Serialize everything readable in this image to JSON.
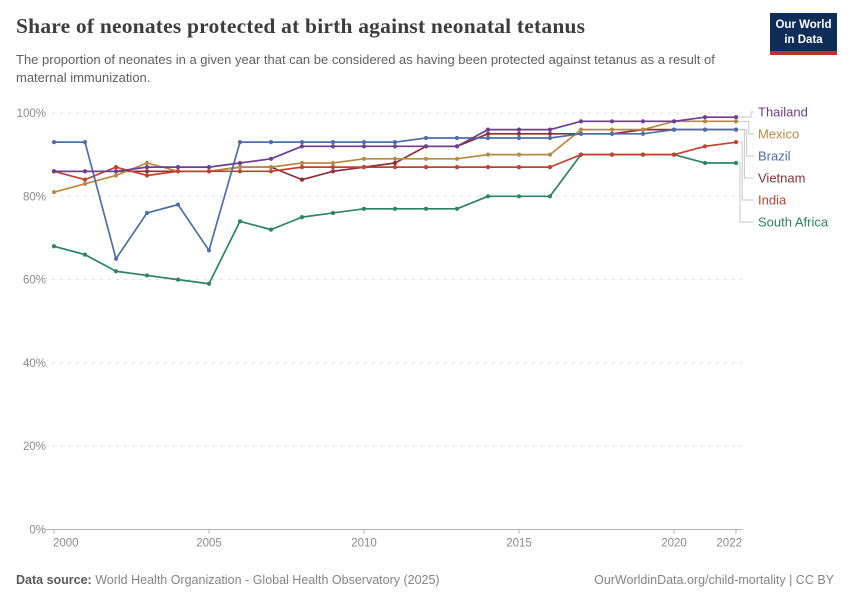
{
  "header": {
    "title": "Share of neonates protected at birth against neonatal tetanus",
    "subtitle": "The proportion of neonates in a given year that can be considered as having been protected against tetanus as a result of maternal immunization.",
    "logo": {
      "line1": "Our World",
      "line2": "in Data",
      "bg_color": "#0e2e57",
      "stripe_color": "#bf3036"
    }
  },
  "chart_data": {
    "type": "line",
    "title": "Share of neonates protected at birth against neonatal tetanus",
    "x": [
      2000,
      2001,
      2002,
      2003,
      2004,
      2005,
      2006,
      2007,
      2008,
      2009,
      2010,
      2011,
      2012,
      2013,
      2014,
      2015,
      2016,
      2017,
      2018,
      2019,
      2020,
      2021,
      2022
    ],
    "series": [
      {
        "name": "Thailand",
        "color": "#6d3e91",
        "values": [
          86,
          86,
          86,
          87,
          87,
          87,
          88,
          89,
          92,
          92,
          92,
          92,
          92,
          92,
          96,
          96,
          96,
          98,
          98,
          98,
          98,
          99,
          99
        ]
      },
      {
        "name": "Mexico",
        "color": "#b78a43",
        "values": [
          81,
          83,
          85,
          88,
          86,
          86,
          87,
          87,
          88,
          88,
          89,
          89,
          89,
          89,
          90,
          90,
          90,
          96,
          96,
          96,
          98,
          98,
          98
        ]
      },
      {
        "name": "Brazil",
        "color": "#4e6ea6",
        "values": [
          93,
          93,
          65,
          76,
          78,
          67,
          93,
          93,
          93,
          93,
          93,
          93,
          94,
          94,
          94,
          94,
          94,
          95,
          95,
          95,
          96,
          96,
          96
        ]
      },
      {
        "name": "Vietnam",
        "color": "#8c2f39",
        "values": [
          86,
          86,
          86,
          86,
          86,
          86,
          87,
          87,
          84,
          86,
          87,
          88,
          92,
          92,
          95,
          95,
          95,
          95,
          95,
          96,
          96,
          96,
          96
        ]
      },
      {
        "name": "India",
        "color": "#c3402f",
        "values": [
          86,
          84,
          87,
          85,
          86,
          86,
          86,
          86,
          87,
          87,
          87,
          87,
          87,
          87,
          87,
          87,
          87,
          90,
          90,
          90,
          90,
          92,
          93
        ]
      },
      {
        "name": "South Africa",
        "color": "#2c8465",
        "values": [
          68,
          66,
          62,
          61,
          60,
          59,
          74,
          72,
          75,
          76,
          77,
          77,
          77,
          77,
          80,
          80,
          80,
          90,
          90,
          90,
          90,
          88,
          88
        ]
      }
    ],
    "ylim": [
      0,
      100
    ],
    "y_ticks": [
      0,
      20,
      40,
      60,
      80,
      100
    ],
    "y_tick_labels": [
      "0%",
      "20%",
      "40%",
      "60%",
      "80%",
      "100%"
    ],
    "x_ticks": [
      2000,
      2005,
      2010,
      2015,
      2020,
      2022
    ],
    "x_tick_labels": [
      "2000",
      "2005",
      "2010",
      "2015",
      "2020",
      "2022"
    ],
    "grid": "horizontal-dashed",
    "legend_position": "right",
    "axis_label_color": "#8c8c8c",
    "gridline_color": "#dcdcdc",
    "axis_line_color": "#b0b0b0",
    "connector_color": "#c9c9c9"
  },
  "footer": {
    "source_label": "Data source:",
    "source_text": "World Health Organization - Global Health Observatory (2025)",
    "url_text": "OurWorldinData.org/child-mortality",
    "separator": " | ",
    "license": "CC BY"
  }
}
